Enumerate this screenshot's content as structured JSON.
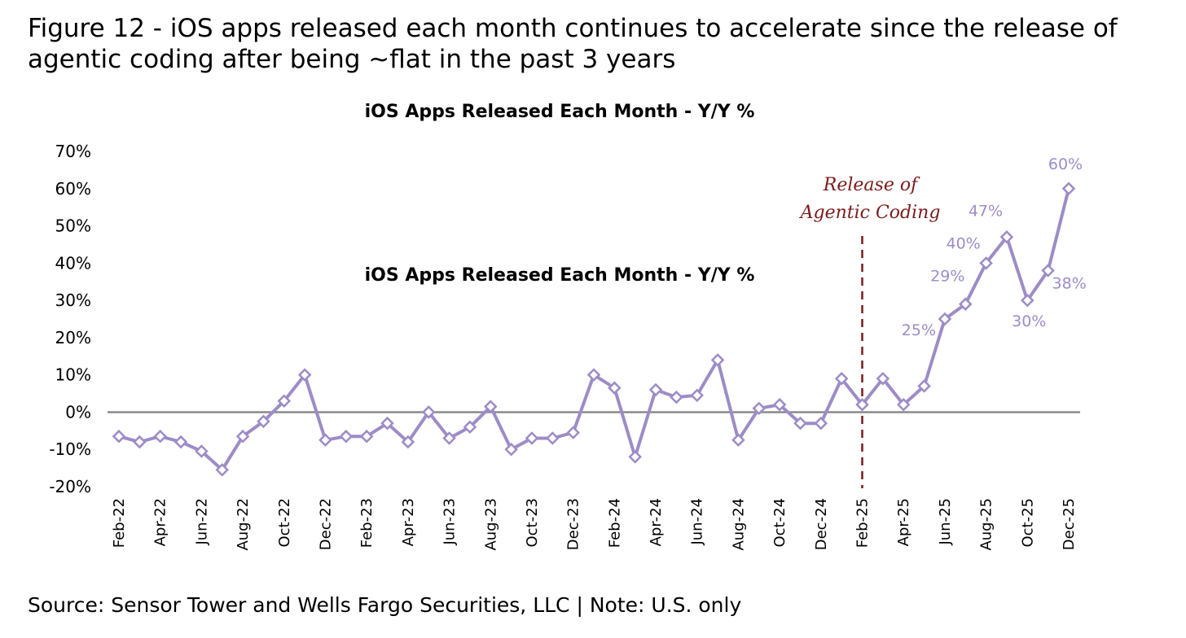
{
  "figure": {
    "title_line1": "Figure 12 - iOS apps released each month continues to accelerate since the release of",
    "title_line2": "agentic coding after being ~flat in the past 3 years",
    "source": "Source: Sensor Tower and Wells Fargo Securities, LLC | Note: U.S. only"
  },
  "chart_data": {
    "type": "line",
    "title": "iOS Apps Released Each Month - Y/Y %",
    "title_repeat": "iOS Apps Released Each Month - Y/Y %",
    "xlabel": "",
    "ylabel": "",
    "ylim": [
      -20,
      70
    ],
    "yticks": [
      70,
      60,
      50,
      40,
      30,
      20,
      10,
      0,
      -10,
      -20
    ],
    "ytick_labels": [
      "70%",
      "60%",
      "50%",
      "40%",
      "30%",
      "20%",
      "10%",
      "0%",
      "-10%",
      "-20%"
    ],
    "x": [
      "Feb-22",
      "Mar-22",
      "Apr-22",
      "May-22",
      "Jun-22",
      "Jul-22",
      "Aug-22",
      "Sep-22",
      "Oct-22",
      "Nov-22",
      "Dec-22",
      "Jan-23",
      "Feb-23",
      "Mar-23",
      "Apr-23",
      "May-23",
      "Jun-23",
      "Jul-23",
      "Aug-23",
      "Sep-23",
      "Oct-23",
      "Nov-23",
      "Dec-23",
      "Jan-24",
      "Feb-24",
      "Mar-24",
      "Apr-24",
      "May-24",
      "Jun-24",
      "Jul-24",
      "Aug-24",
      "Sep-24",
      "Oct-24",
      "Nov-24",
      "Dec-24",
      "Jan-25",
      "Feb-25",
      "Mar-25",
      "Apr-25",
      "May-25",
      "Jun-25",
      "Jul-25",
      "Aug-25",
      "Sep-25",
      "Oct-25",
      "Nov-25",
      "Dec-25"
    ],
    "xtick_labels": [
      "Feb-22",
      "Apr-22",
      "Jun-22",
      "Aug-22",
      "Oct-22",
      "Dec-22",
      "Feb-23",
      "Apr-23",
      "Jun-23",
      "Aug-23",
      "Oct-23",
      "Dec-23",
      "Feb-24",
      "Apr-24",
      "Jun-24",
      "Aug-24",
      "Oct-24",
      "Dec-24",
      "Feb-25",
      "Apr-25",
      "Jun-25",
      "Aug-25",
      "Oct-25",
      "Dec-25"
    ],
    "series": [
      {
        "name": "iOS Apps Released Each Month - Y/Y %",
        "color": "#9d8cc6",
        "values": [
          -6.5,
          -8,
          -6.5,
          -8,
          -10.5,
          -15.5,
          -6.5,
          -2.5,
          3,
          10,
          -7.5,
          -6.5,
          -6.5,
          -3,
          -8,
          0,
          -7,
          -4,
          1.5,
          -10,
          -7,
          -7,
          -5.5,
          10,
          6.5,
          -12,
          6,
          4,
          4.5,
          14,
          -7.5,
          1,
          2,
          -3,
          -3,
          9,
          2,
          9,
          2,
          7,
          25,
          29,
          40,
          47,
          30,
          38,
          60
        ]
      }
    ],
    "data_labels": [
      {
        "index": 40,
        "text": "25%"
      },
      {
        "index": 41,
        "text": "29%"
      },
      {
        "index": 42,
        "text": "40%"
      },
      {
        "index": 43,
        "text": "47%"
      },
      {
        "index": 44,
        "text": "30%"
      },
      {
        "index": 45,
        "text": "38%"
      },
      {
        "index": 46,
        "text": "60%"
      }
    ],
    "annotation": {
      "line1": "Release of",
      "line2": "Agentic Coding",
      "at_category": "Feb-25",
      "color": "#7a1c1c"
    },
    "grid": false,
    "legend": "none"
  }
}
